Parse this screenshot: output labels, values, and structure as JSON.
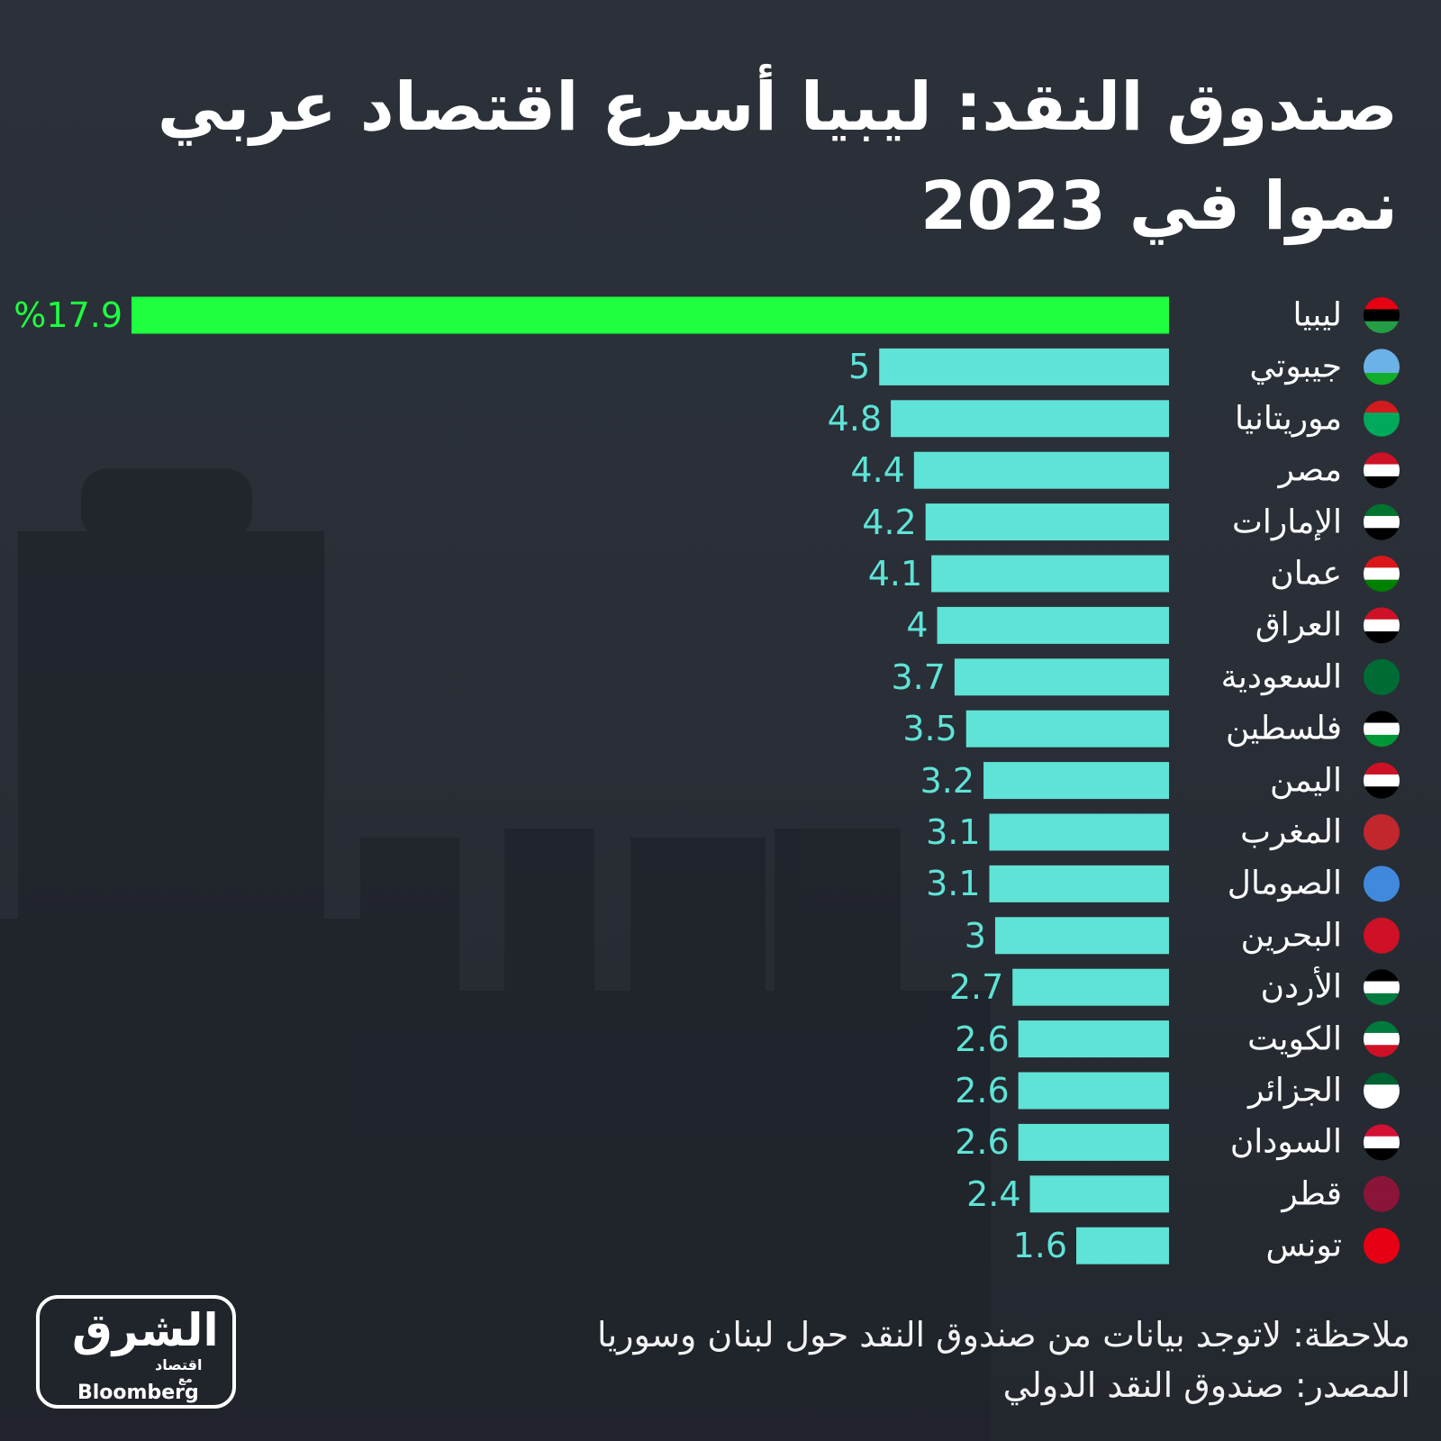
{
  "chart_data": {
    "type": "bar",
    "orientation": "horizontal",
    "direction": "rtl",
    "title": [
      "صندوق النقد: ليبيا أسرع اقتصاد عربي",
      "نموا في 2023"
    ],
    "categories": [
      "ليبيا",
      "جيبوتي",
      "موريتانيا",
      "مصر",
      "الإمارات",
      "عمان",
      "العراق",
      "السعودية",
      "فلسطين",
      "اليمن",
      "المغرب",
      "الصومال",
      "البحرين",
      "الأردن",
      "الكويت",
      "الجزائر",
      "السودان",
      "قطر",
      "تونس"
    ],
    "values": [
      17.9,
      5,
      4.8,
      4.4,
      4.2,
      4.1,
      4,
      3.7,
      3.5,
      3.2,
      3.1,
      3.1,
      3,
      2.7,
      2.6,
      2.6,
      2.6,
      2.4,
      1.6
    ],
    "value_labels": [
      "%17.9",
      "5",
      "4.8",
      "4.4",
      "4.2",
      "4.1",
      "4",
      "3.7",
      "3.5",
      "3.2",
      "3.1",
      "3.1",
      "3",
      "2.7",
      "2.6",
      "2.6",
      "2.6",
      "2.4",
      "1.6"
    ],
    "colors": [
      "#1dff3f",
      "#5fe3d7",
      "#5fe3d7",
      "#5fe3d7",
      "#5fe3d7",
      "#5fe3d7",
      "#5fe3d7",
      "#5fe3d7",
      "#5fe3d7",
      "#5fe3d7",
      "#5fe3d7",
      "#5fe3d7",
      "#5fe3d7",
      "#5fe3d7",
      "#5fe3d7",
      "#5fe3d7",
      "#5fe3d7",
      "#5fe3d7",
      "#5fe3d7"
    ],
    "note": "ملاحظة: لاتوجد بيانات من صندوق النقد حول لبنان وسوريا",
    "source": "المصدر: صندوق النقد الدولي"
  },
  "logo": {
    "name": "الشرق",
    "sub": "اقتصاد",
    "with": "مع",
    "partner": "Bloomberg"
  }
}
